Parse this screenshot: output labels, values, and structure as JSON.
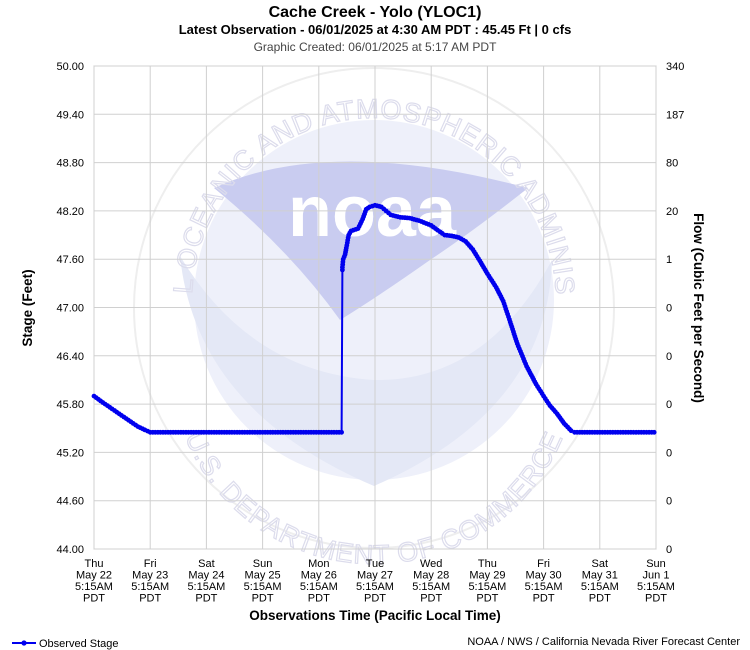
{
  "chart_data": {
    "type": "line",
    "title": "Cache Creek - Yolo (YLOC1)",
    "subtitle": "Latest Observation - 06/01/2025 at 4:30 AM PDT : 45.45 Ft | 0 cfs",
    "created": "Graphic Created: 06/01/2025 at 5:17 AM PDT",
    "xlabel": "Observations Time (Pacific Local Time)",
    "ylabel": "Stage (Feet)",
    "y2label": "Flow (Cubic Feet per Second)",
    "ylim": [
      44.0,
      50.0
    ],
    "xlim": [
      "2025-05-22 05:15",
      "2025-06-01 05:15"
    ],
    "y_ticks": [
      "50.00",
      "49.40",
      "48.80",
      "48.20",
      "47.60",
      "47.00",
      "46.40",
      "45.80",
      "45.20",
      "44.60",
      "44.00"
    ],
    "y2_ticks": [
      "340",
      "187",
      "80",
      "20",
      "1",
      "0",
      "0",
      "0",
      "0",
      "0",
      "0"
    ],
    "x_ticks": [
      {
        "day": "Thu",
        "date": "May 22",
        "time": "5:15AM",
        "tz": "PDT"
      },
      {
        "day": "Fri",
        "date": "May 23",
        "time": "5:15AM",
        "tz": "PDT"
      },
      {
        "day": "Sat",
        "date": "May 24",
        "time": "5:15AM",
        "tz": "PDT"
      },
      {
        "day": "Sun",
        "date": "May 25",
        "time": "5:15AM",
        "tz": "PDT"
      },
      {
        "day": "Mon",
        "date": "May 26",
        "time": "5:15AM",
        "tz": "PDT"
      },
      {
        "day": "Tue",
        "date": "May 27",
        "time": "5:15AM",
        "tz": "PDT"
      },
      {
        "day": "Wed",
        "date": "May 28",
        "time": "5:15AM",
        "tz": "PDT"
      },
      {
        "day": "Thu",
        "date": "May 29",
        "time": "5:15AM",
        "tz": "PDT"
      },
      {
        "day": "Fri",
        "date": "May 30",
        "time": "5:15AM",
        "tz": "PDT"
      },
      {
        "day": "Sat",
        "date": "May 31",
        "time": "5:15AM",
        "tz": "PDT"
      },
      {
        "day": "Sun",
        "date": "Jun 1",
        "time": "5:15AM",
        "tz": "PDT"
      }
    ],
    "grid": true,
    "legend": "bottom-left",
    "series": [
      {
        "name": "Observed Stage",
        "color": "#0000ee",
        "points": [
          [
            "2025-05-22 05:15",
            45.9
          ],
          [
            "2025-05-22 09:00",
            45.82
          ],
          [
            "2025-05-22 13:00",
            45.74
          ],
          [
            "2025-05-22 17:00",
            45.66
          ],
          [
            "2025-05-22 21:00",
            45.58
          ],
          [
            "2025-05-23 00:00",
            45.52
          ],
          [
            "2025-05-23 03:00",
            45.48
          ],
          [
            "2025-05-23 05:15",
            45.45
          ],
          [
            "2025-05-24 05:15",
            45.45
          ],
          [
            "2025-05-25 05:15",
            45.45
          ],
          [
            "2025-05-26 05:15",
            45.45
          ],
          [
            "2025-05-26 15:00",
            45.45
          ],
          [
            "2025-05-26 15:20",
            47.5
          ],
          [
            "2025-05-26 15:40",
            47.6
          ],
          [
            "2025-05-26 16:30",
            47.66
          ],
          [
            "2025-05-26 17:00",
            47.74
          ],
          [
            "2025-05-26 18:00",
            47.9
          ],
          [
            "2025-05-26 19:00",
            47.95
          ],
          [
            "2025-05-26 22:00",
            47.98
          ],
          [
            "2025-05-27 00:00",
            48.1
          ],
          [
            "2025-05-27 01:30",
            48.22
          ],
          [
            "2025-05-27 03:00",
            48.25
          ],
          [
            "2025-05-27 05:15",
            48.27
          ],
          [
            "2025-05-27 08:00",
            48.25
          ],
          [
            "2025-05-27 10:00",
            48.2
          ],
          [
            "2025-05-27 12:00",
            48.15
          ],
          [
            "2025-05-27 16:00",
            48.12
          ],
          [
            "2025-05-27 20:00",
            48.11
          ],
          [
            "2025-05-28 00:00",
            48.08
          ],
          [
            "2025-05-28 05:15",
            48.02
          ],
          [
            "2025-05-28 08:00",
            47.96
          ],
          [
            "2025-05-28 11:00",
            47.9
          ],
          [
            "2025-05-28 14:00",
            47.89
          ],
          [
            "2025-05-28 17:00",
            47.87
          ],
          [
            "2025-05-28 20:00",
            47.82
          ],
          [
            "2025-05-28 23:00",
            47.72
          ],
          [
            "2025-05-29 02:00",
            47.58
          ],
          [
            "2025-05-29 05:15",
            47.42
          ],
          [
            "2025-05-29 09:00",
            47.25
          ],
          [
            "2025-05-29 12:00",
            47.08
          ],
          [
            "2025-05-29 15:00",
            46.82
          ],
          [
            "2025-05-29 18:00",
            46.55
          ],
          [
            "2025-05-29 22:00",
            46.27
          ],
          [
            "2025-05-30 02:00",
            46.05
          ],
          [
            "2025-05-30 05:15",
            45.9
          ],
          [
            "2025-05-30 08:00",
            45.78
          ],
          [
            "2025-05-30 11:00",
            45.68
          ],
          [
            "2025-05-30 14:00",
            45.56
          ],
          [
            "2025-05-30 17:00",
            45.47
          ],
          [
            "2025-05-30 18:30",
            45.45
          ],
          [
            "2025-05-31 05:15",
            45.45
          ],
          [
            "2025-06-01 04:30",
            45.45
          ]
        ]
      }
    ]
  },
  "legend": {
    "label": "Observed Stage"
  },
  "footer": {
    "credit": "NOAA / NWS / California Nevada River Forecast Center"
  },
  "watermark": {
    "logo_text": "noaa",
    "arc_top": "NATIONAL OCEANIC AND ATMOSPHERIC ADMINISTRATION",
    "arc_bottom": "U.S. DEPARTMENT OF COMMERCE"
  }
}
